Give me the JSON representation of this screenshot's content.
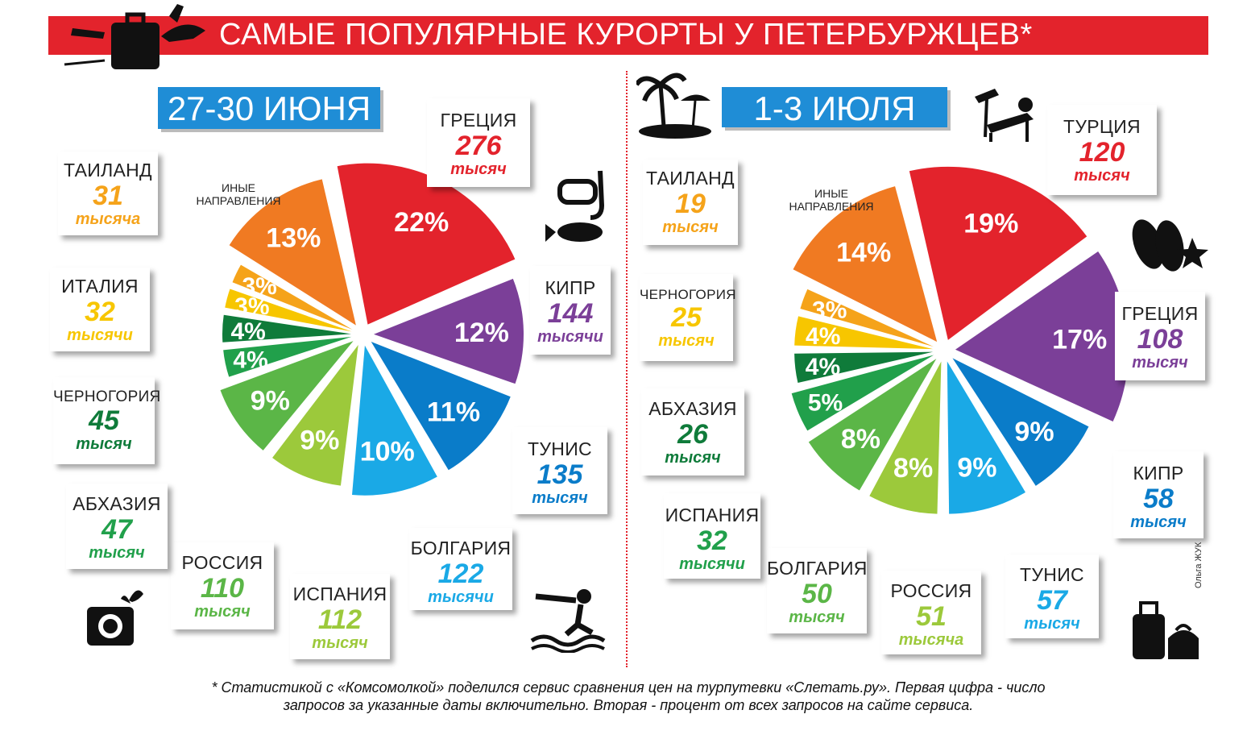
{
  "title": "САМЫЕ ПОПУЛЯРНЫЕ КУРОРТЫ У ПЕТЕРБУРЖЦЕВ*",
  "footnote_line1": "* Статистикой с «Комсомолкой» поделился сервис сравнения цен на турпутевки «Слетать.ру». Первая цифра - число",
  "footnote_line2": "запросов за указанные даты включительно. Вторая - процент от всех запросов на сайте сервиса.",
  "credit": "Ольга ЖУК",
  "other_note": "ИНЫЕ НАПРАВЛЕНИЯ",
  "chart_data": [
    {
      "type": "pie",
      "title": "27-30 ИЮНЯ",
      "slices": [
        {
          "name": "ГРЕЦИЯ",
          "requests": "276",
          "unit": "тысяч",
          "percent": 22,
          "color": "#e3232c"
        },
        {
          "name": "КИПР",
          "requests": "144",
          "unit": "тысячи",
          "percent": 12,
          "color": "#7b3f98"
        },
        {
          "name": "ТУНИС",
          "requests": "135",
          "unit": "тысяч",
          "percent": 11,
          "color": "#0a7cc9"
        },
        {
          "name": "БОЛГАРИЯ",
          "requests": "122",
          "unit": "тысячи",
          "percent": 10,
          "color": "#1aa9e6"
        },
        {
          "name": "ИСПАНИЯ",
          "requests": "112",
          "unit": "тысяч",
          "percent": 9,
          "color": "#9cc93b"
        },
        {
          "name": "РОССИЯ",
          "requests": "110",
          "unit": "тысяч",
          "percent": 9,
          "color": "#5bb647"
        },
        {
          "name": "АБХАЗИЯ",
          "requests": "47",
          "unit": "тысяч",
          "percent": 4,
          "color": "#21a04b"
        },
        {
          "name": "ЧЕРНОГОРИЯ",
          "requests": "45",
          "unit": "тысяч",
          "percent": 4,
          "color": "#0f7b3a"
        },
        {
          "name": "ИТАЛИЯ",
          "requests": "32",
          "unit": "тысячи",
          "percent": 3,
          "color": "#f7c600"
        },
        {
          "name": "ТАИЛАНД",
          "requests": "31",
          "unit": "тысяча",
          "percent": 3,
          "color": "#f5a31a"
        },
        {
          "name": "ИНЫЕ НАПРАВЛЕНИЯ",
          "requests": "",
          "unit": "",
          "percent": 13,
          "color": "#f07a22"
        }
      ]
    },
    {
      "type": "pie",
      "title": "1-3 ИЮЛЯ",
      "slices": [
        {
          "name": "ТУРЦИЯ",
          "requests": "120",
          "unit": "тысяч",
          "percent": 19,
          "color": "#e3232c"
        },
        {
          "name": "ГРЕЦИЯ",
          "requests": "108",
          "unit": "тысяч",
          "percent": 17,
          "color": "#7b3f98"
        },
        {
          "name": "КИПР",
          "requests": "58",
          "unit": "тысяч",
          "percent": 9,
          "color": "#0a7cc9"
        },
        {
          "name": "ТУНИС",
          "requests": "57",
          "unit": "тысяч",
          "percent": 9,
          "color": "#1aa9e6"
        },
        {
          "name": "РОССИЯ",
          "requests": "51",
          "unit": "тысяча",
          "percent": 8,
          "color": "#9cc93b"
        },
        {
          "name": "БОЛГАРИЯ",
          "requests": "50",
          "unit": "тысяч",
          "percent": 8,
          "color": "#5bb647"
        },
        {
          "name": "ИСПАНИЯ",
          "requests": "32",
          "unit": "тысячи",
          "percent": 5,
          "color": "#21a04b"
        },
        {
          "name": "АБХАЗИЯ",
          "requests": "26",
          "unit": "тысяч",
          "percent": 4,
          "color": "#0f7b3a"
        },
        {
          "name": "ЧЕРНОГОРИЯ",
          "requests": "25",
          "unit": "тысяч",
          "percent": 4,
          "color": "#f7c600"
        },
        {
          "name": "ТАИЛАНД",
          "requests": "19",
          "unit": "тысяч",
          "percent": 3,
          "color": "#f5a31a"
        },
        {
          "name": "ИНЫЕ НАПРАВЛЕНИЯ",
          "requests": "",
          "unit": "",
          "percent": 14,
          "color": "#f07a22"
        }
      ]
    }
  ]
}
